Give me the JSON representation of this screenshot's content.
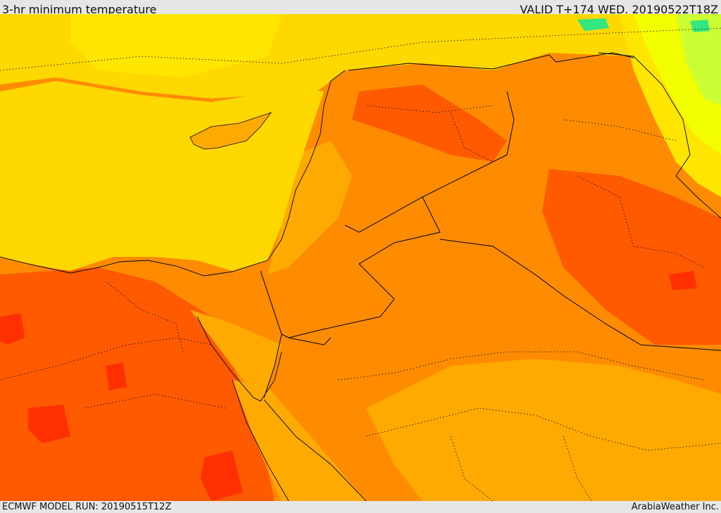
{
  "header": {
    "title": "3-hr minimum temperature",
    "valid": "VALID T+174 WED. 20190522T18Z"
  },
  "footer": {
    "model_run": "ECMWF MODEL RUN: 20190515T12Z",
    "credit": "ArabiaWeather Inc."
  },
  "colors": {
    "sea": "#ffd800",
    "warm_orange": "#ffaa00",
    "orange": "#ff8c00",
    "deep_orange": "#ff5a00",
    "red": "#ff3000",
    "yellow": "#ffe600",
    "lime": "#f2ff00",
    "yellow_green": "#ccff33",
    "green": "#33e680",
    "border": "#000000"
  }
}
